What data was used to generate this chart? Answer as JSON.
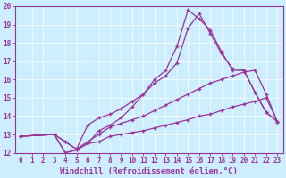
{
  "bg_color": "#cceeff",
  "line_color": "#993399",
  "xlim": [
    -0.5,
    23.5
  ],
  "ylim": [
    12,
    20
  ],
  "xticks": [
    0,
    1,
    2,
    3,
    4,
    5,
    6,
    7,
    8,
    9,
    10,
    11,
    12,
    13,
    14,
    15,
    16,
    17,
    18,
    19,
    20,
    21,
    22,
    23
  ],
  "yticks": [
    12,
    13,
    14,
    15,
    16,
    17,
    18,
    19,
    20
  ],
  "xlabel": "Windchill (Refroidissement éolien,°C)",
  "lines": [
    {
      "x": [
        0,
        3,
        4,
        5,
        6,
        7,
        8,
        9,
        10,
        11,
        12,
        13,
        14,
        15,
        16,
        17,
        18,
        19,
        20,
        21,
        22,
        23
      ],
      "y": [
        12.9,
        13.0,
        12.0,
        12.15,
        12.5,
        12.6,
        12.9,
        13.0,
        13.1,
        13.2,
        13.35,
        13.5,
        13.65,
        13.8,
        14.0,
        14.1,
        14.3,
        14.5,
        14.65,
        14.8,
        15.0,
        13.7
      ]
    },
    {
      "x": [
        0,
        3,
        4,
        5,
        6,
        7,
        8,
        9,
        10,
        11,
        12,
        13,
        14,
        15,
        16,
        17,
        18,
        19,
        20,
        21,
        22,
        23
      ],
      "y": [
        12.9,
        13.0,
        12.6,
        12.2,
        12.6,
        13.0,
        13.4,
        13.6,
        13.8,
        14.0,
        14.3,
        14.6,
        14.9,
        15.2,
        15.5,
        15.8,
        16.0,
        16.2,
        16.4,
        16.5,
        15.2,
        13.7
      ]
    },
    {
      "x": [
        0,
        3,
        4,
        5,
        6,
        7,
        8,
        9,
        10,
        11,
        12,
        13,
        14,
        15,
        16,
        17,
        18,
        19,
        20,
        21,
        22,
        23
      ],
      "y": [
        12.9,
        13.0,
        12.6,
        12.2,
        13.5,
        13.9,
        14.1,
        14.4,
        14.8,
        15.2,
        15.8,
        16.2,
        16.9,
        18.8,
        19.6,
        18.5,
        17.4,
        16.6,
        16.5,
        15.3,
        14.2,
        13.7
      ]
    },
    {
      "x": [
        0,
        3,
        4,
        5,
        6,
        7,
        8,
        9,
        10,
        11,
        12,
        13,
        14,
        15,
        16,
        17,
        18,
        19,
        20,
        21,
        22,
        23
      ],
      "y": [
        12.9,
        13.0,
        12.0,
        12.15,
        12.5,
        13.2,
        13.5,
        13.9,
        14.5,
        15.2,
        16.0,
        16.5,
        17.8,
        19.8,
        19.3,
        18.7,
        17.5,
        16.5,
        16.5,
        15.3,
        14.2,
        13.7
      ]
    }
  ],
  "tick_fontsize": 5.5,
  "xlabel_fontsize": 6.5,
  "linewidth": 0.9,
  "markersize": 2.5
}
